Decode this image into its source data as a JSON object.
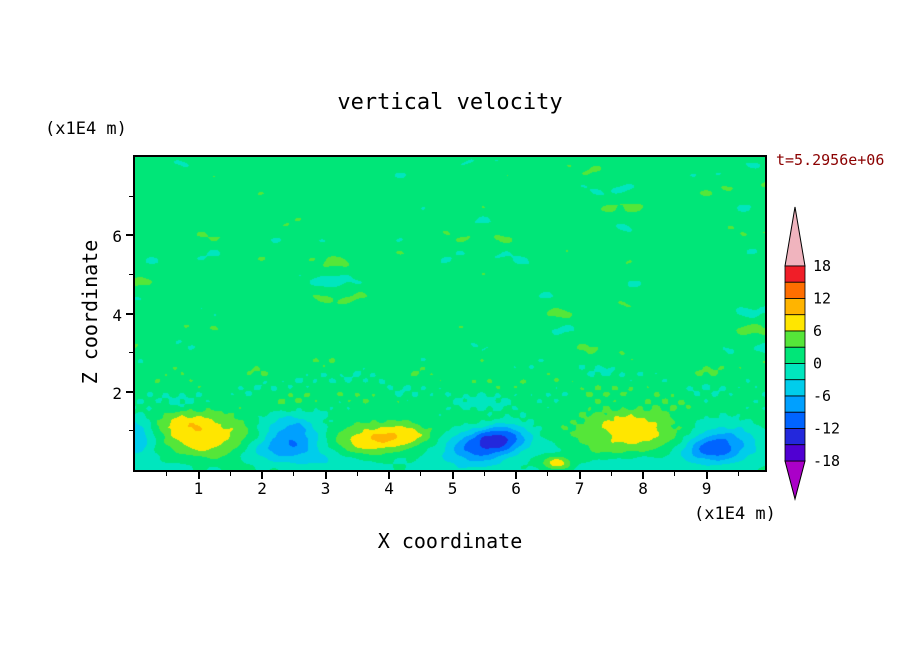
{
  "page": {
    "background_color": "#ffffff",
    "frame_color": "#000000"
  },
  "chart_data": {
    "type": "contour",
    "title": "vertical velocity",
    "timestamp": "t=5.2956e+06",
    "timestamp_color": "#8b0000",
    "xlabel": "X coordinate",
    "ylabel": "Z coordinate",
    "x_axis_unit": "(x1E4 m)",
    "y_axis_unit": "(x1E4 m)",
    "xlim": [
      0,
      9.92
    ],
    "zlim": [
      0,
      8
    ],
    "x_major_ticks": [
      1,
      2,
      3,
      4,
      5,
      6,
      7,
      8,
      9
    ],
    "x_minor_step": 0.5,
    "y_major_ticks": [
      2,
      4,
      6
    ],
    "y_minor_ticks": [
      1,
      3,
      5,
      7
    ],
    "contour_interval": 3,
    "contour_levels": [
      -18,
      -15,
      -12,
      -9,
      -6,
      -3,
      0,
      3,
      6,
      9,
      12,
      15,
      18
    ],
    "colorbar_labels": [
      18,
      12,
      6,
      0,
      -6,
      -12,
      -18
    ],
    "palette": [
      "#aa00c8",
      "#5000d2",
      "#2328dc",
      "#0064ff",
      "#00a0ff",
      "#00cdeb",
      "#00e6be",
      "#00e678",
      "#55e639",
      "#ffe600",
      "#ffb400",
      "#ff6e00",
      "#f01e28",
      "#f0b4be"
    ],
    "field": {
      "description": "vertical velocity w (m/s): near-zero noisy field aloft, convective up/downdraft cells below z=2e4 m",
      "background_mean": 1.5,
      "noise_modes": [
        {
          "fx": 1.4,
          "fz": 5.3,
          "px": 0.4,
          "pz": 1.1,
          "amp": 0.8
        },
        {
          "fx": 2.8,
          "fz": 8.1,
          "px": 2.0,
          "pz": 0.6,
          "amp": 0.65
        },
        {
          "fx": 5.3,
          "fz": 4.4,
          "px": 4.1,
          "pz": 2.9,
          "amp": 0.55
        },
        {
          "fx": 0.9,
          "fz": 6.9,
          "px": 5.2,
          "pz": 2.2,
          "amp": 0.7
        },
        {
          "fx": 9.8,
          "fz": 11.3,
          "px": 1.3,
          "pz": 4.4,
          "amp": 0.4
        },
        {
          "fx": 16.2,
          "fz": 14.7,
          "px": 3.7,
          "pz": 0.9,
          "amp": 0.3
        },
        {
          "fx": 24.0,
          "fz": 18.0,
          "px": 2.5,
          "pz": 1.4,
          "amp": 1.15,
          "z_center": 2.0,
          "z_sigma": 0.9
        }
      ],
      "negative_layer": {
        "amplitude": -3.3,
        "z_center": 0.5,
        "z_sigma": 0.95,
        "x_mod_amp": 0.3,
        "x_mod_freq": 1.6,
        "x_mod_phase": 1.0
      },
      "blobs": [
        {
          "x": 0.05,
          "z": 0.9,
          "sx": 0.3,
          "sz": 0.5,
          "amp": -5.0
        },
        {
          "x": 1.0,
          "z": 0.85,
          "sx": 0.8,
          "sz": 0.55,
          "amp": 11.5
        },
        {
          "x": 2.45,
          "z": 0.75,
          "sx": 0.52,
          "sz": 0.48,
          "amp": -10.5
        },
        {
          "x": 3.95,
          "z": 0.8,
          "sx": 0.85,
          "sz": 0.5,
          "amp": 11.0
        },
        {
          "x": 5.3,
          "z": 0.5,
          "sx": 0.5,
          "sz": 0.38,
          "amp": -7.0
        },
        {
          "x": 5.75,
          "z": 0.8,
          "sx": 0.42,
          "sz": 0.42,
          "amp": -10.0
        },
        {
          "x": 6.65,
          "z": 0.18,
          "sx": 0.22,
          "sz": 0.18,
          "amp": 8.0
        },
        {
          "x": 7.85,
          "z": 0.95,
          "sx": 0.95,
          "sz": 0.58,
          "amp": 10.0
        },
        {
          "x": 9.15,
          "z": 0.65,
          "sx": 0.5,
          "sz": 0.45,
          "amp": -10.0
        }
      ]
    }
  }
}
